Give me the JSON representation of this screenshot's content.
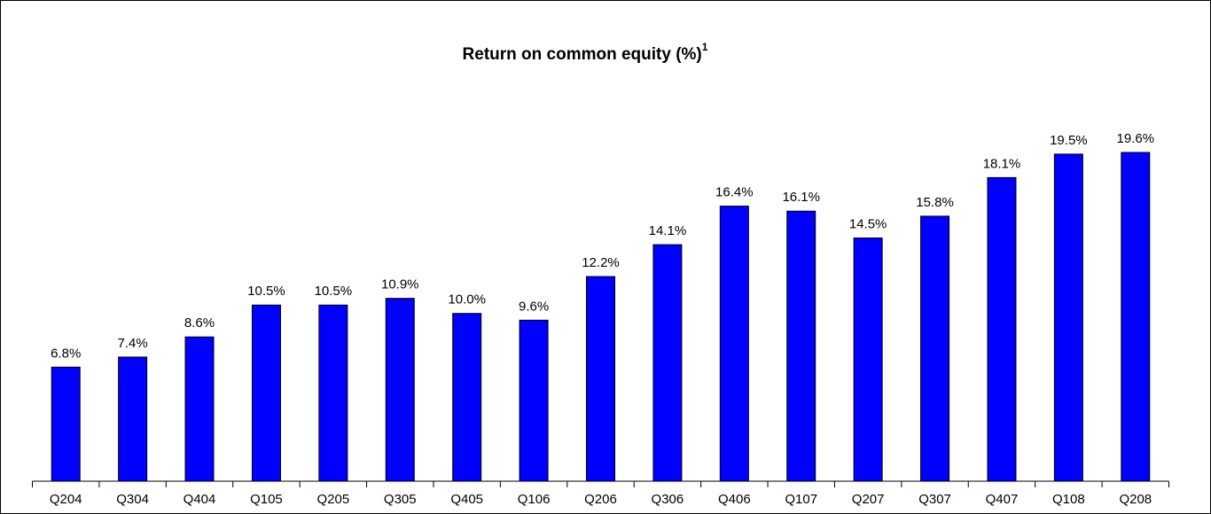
{
  "chart_data": {
    "type": "bar",
    "title": "Return on common equity (%)",
    "title_footnote": "1",
    "categories": [
      "Q204",
      "Q304",
      "Q404",
      "Q105",
      "Q205",
      "Q305",
      "Q405",
      "Q106",
      "Q206",
      "Q306",
      "Q406",
      "Q107",
      "Q207",
      "Q307",
      "Q407",
      "Q108",
      "Q208"
    ],
    "values": [
      6.8,
      7.4,
      8.6,
      10.5,
      10.5,
      10.9,
      10.0,
      9.6,
      12.2,
      14.1,
      16.4,
      16.1,
      14.5,
      15.8,
      18.1,
      19.5,
      19.6
    ],
    "value_labels": [
      "6.8%",
      "7.4%",
      "8.6%",
      "10.5%",
      "10.5%",
      "10.9%",
      "10.0%",
      "9.6%",
      "12.2%",
      "14.1%",
      "16.4%",
      "16.1%",
      "14.5%",
      "15.8%",
      "18.1%",
      "19.5%",
      "19.6%"
    ],
    "color": "#0000ff"
  }
}
